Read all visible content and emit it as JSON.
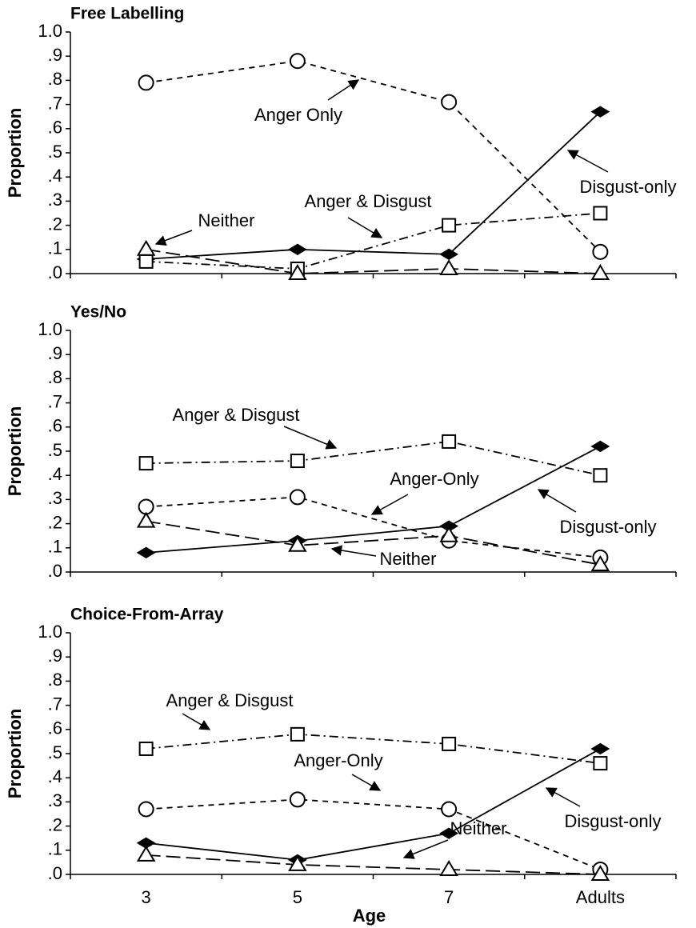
{
  "chart_data": [
    {
      "type": "line",
      "title": "Free Labelling",
      "y_label": "Proportion",
      "ylim": [
        0,
        1
      ],
      "yticks": [
        {
          "value": 0,
          "label": ".0"
        },
        {
          "value": 0.1,
          "label": ".1"
        },
        {
          "value": 0.2,
          "label": ".2"
        },
        {
          "value": 0.3,
          "label": ".3"
        },
        {
          "value": 0.4,
          "label": ".4"
        },
        {
          "value": 0.5,
          "label": ".5"
        },
        {
          "value": 0.6,
          "label": ".6"
        },
        {
          "value": 0.7,
          "label": ".7"
        },
        {
          "value": 0.8,
          "label": ".8"
        },
        {
          "value": 0.9,
          "label": ".9"
        },
        {
          "value": 1,
          "label": "1.0"
        }
      ],
      "series": [
        {
          "name": "Anger Only",
          "color": "#000000",
          "marker": "circle",
          "values": [
            0.79,
            0.88,
            0.71,
            0.09
          ]
        },
        {
          "name": "Disgust-only",
          "color": "#000000",
          "marker": "diamond",
          "values": [
            0.06,
            0.1,
            0.08,
            0.67
          ]
        },
        {
          "name": "Anger & Disgust",
          "color": "#000000",
          "marker": "square",
          "values": [
            0.05,
            0.02,
            0.2,
            0.25
          ]
        },
        {
          "name": "Neither",
          "color": "#000000",
          "marker": "triangle",
          "values": [
            0.1,
            0.0,
            0.02,
            0.0
          ]
        }
      ]
    },
    {
      "type": "line",
      "title": "Yes/No",
      "y_label": "Proportion",
      "ylim": [
        0,
        1
      ],
      "yticks": [
        {
          "value": 0,
          "label": ".0"
        },
        {
          "value": 0.1,
          "label": ".1"
        },
        {
          "value": 0.2,
          "label": ".2"
        },
        {
          "value": 0.3,
          "label": ".3"
        },
        {
          "value": 0.4,
          "label": ".4"
        },
        {
          "value": 0.5,
          "label": ".5"
        },
        {
          "value": 0.6,
          "label": ".6"
        },
        {
          "value": 0.7,
          "label": ".7"
        },
        {
          "value": 0.8,
          "label": ".8"
        },
        {
          "value": 0.9,
          "label": ".9"
        },
        {
          "value": 1,
          "label": "1.0"
        }
      ],
      "series": [
        {
          "name": "Anger & Disgust",
          "color": "#000000",
          "marker": "square",
          "values": [
            0.45,
            0.46,
            0.54,
            0.4
          ]
        },
        {
          "name": "Anger-Only",
          "color": "#000000",
          "marker": "circle",
          "values": [
            0.27,
            0.31,
            0.13,
            0.06
          ]
        },
        {
          "name": "Disgust-only",
          "color": "#000000",
          "marker": "diamond",
          "values": [
            0.08,
            0.13,
            0.19,
            0.52
          ]
        },
        {
          "name": "Neither",
          "color": "#000000",
          "marker": "triangle",
          "values": [
            0.21,
            0.11,
            0.15,
            0.03
          ]
        }
      ]
    },
    {
      "type": "line",
      "title": "Choice-From-Array",
      "y_label": "Proportion",
      "x_label": "Age",
      "categories": [
        "3",
        "5",
        "7",
        "Adults"
      ],
      "ylim": [
        0,
        1
      ],
      "yticks": [
        {
          "value": 0,
          "label": ".0"
        },
        {
          "value": 0.1,
          "label": ".1"
        },
        {
          "value": 0.2,
          "label": ".2"
        },
        {
          "value": 0.3,
          "label": ".3"
        },
        {
          "value": 0.4,
          "label": ".4"
        },
        {
          "value": 0.5,
          "label": ".5"
        },
        {
          "value": 0.6,
          "label": ".6"
        },
        {
          "value": 0.7,
          "label": ".7"
        },
        {
          "value": 0.8,
          "label": ".8"
        },
        {
          "value": 0.9,
          "label": ".9"
        },
        {
          "value": 1,
          "label": "1.0"
        }
      ],
      "series": [
        {
          "name": "Anger & Disgust",
          "color": "#000000",
          "marker": "square",
          "values": [
            0.52,
            0.58,
            0.54,
            0.46
          ]
        },
        {
          "name": "Anger-Only",
          "color": "#000000",
          "marker": "circle",
          "values": [
            0.27,
            0.31,
            0.27,
            0.02
          ]
        },
        {
          "name": "Disgust-only",
          "color": "#000000",
          "marker": "diamond",
          "values": [
            0.13,
            0.06,
            0.17,
            0.52
          ]
        },
        {
          "name": "Neither",
          "color": "#000000",
          "marker": "triangle",
          "values": [
            0.08,
            0.04,
            0.02,
            0.0
          ]
        }
      ]
    }
  ]
}
